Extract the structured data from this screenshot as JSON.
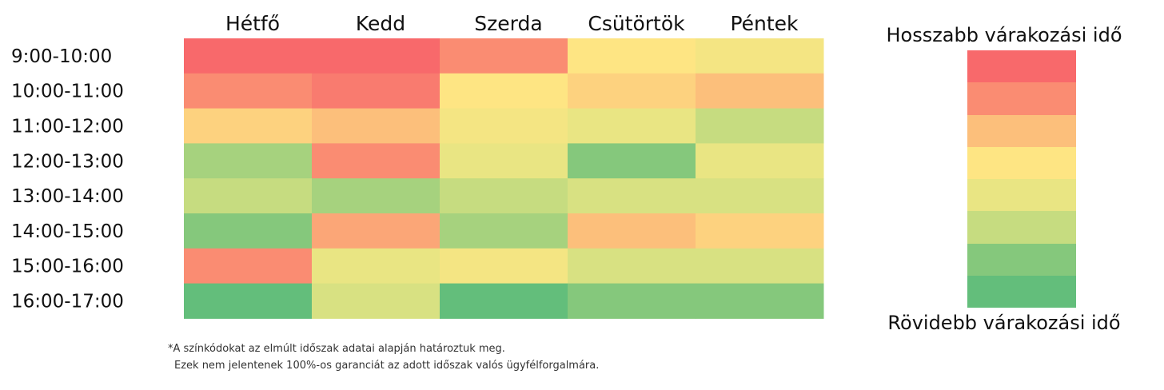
{
  "chart_data": {
    "type": "heatmap",
    "title": "",
    "xlabel": "",
    "ylabel": "",
    "columns": [
      "Hétfő",
      "Kedd",
      "Szerda",
      "Csütörtök",
      "Péntek"
    ],
    "rows": [
      "9:00-10:00",
      "10:00-11:00",
      "11:00-12:00",
      "12:00-13:00",
      "13:00-14:00",
      "14:00-15:00",
      "15:00-16:00",
      "16:00-17:00"
    ],
    "scale_levels": 8,
    "values": [
      [
        8,
        8,
        7,
        5,
        4.5
      ],
      [
        7,
        7.5,
        5,
        5.5,
        6
      ],
      [
        5.5,
        6,
        4.5,
        4,
        3
      ],
      [
        2.5,
        7,
        4,
        2,
        4
      ],
      [
        3,
        2.5,
        3,
        3.5,
        3.5
      ],
      [
        2,
        6.5,
        2.5,
        6,
        5.5
      ],
      [
        7,
        4,
        4.5,
        3.5,
        3.5
      ],
      [
        1,
        3.5,
        1,
        2,
        2
      ]
    ],
    "legend": {
      "top_label": "Hosszabb várakozási idő",
      "bottom_label": "Rövidebb várakozási idő",
      "colors": [
        "#f8696b",
        "#fa8c72",
        "#fcbf7b",
        "#fee583",
        "#e9e583",
        "#c6dc80",
        "#85c87c",
        "#63be7b"
      ]
    }
  },
  "footnote": {
    "line1": "*A színkódokat az elmúlt időszak adatai alapján határoztuk meg.",
    "line2": "Ezek nem jelentenek 100%-os garanciát az adott időszak valós ügyfélforgalmára."
  }
}
